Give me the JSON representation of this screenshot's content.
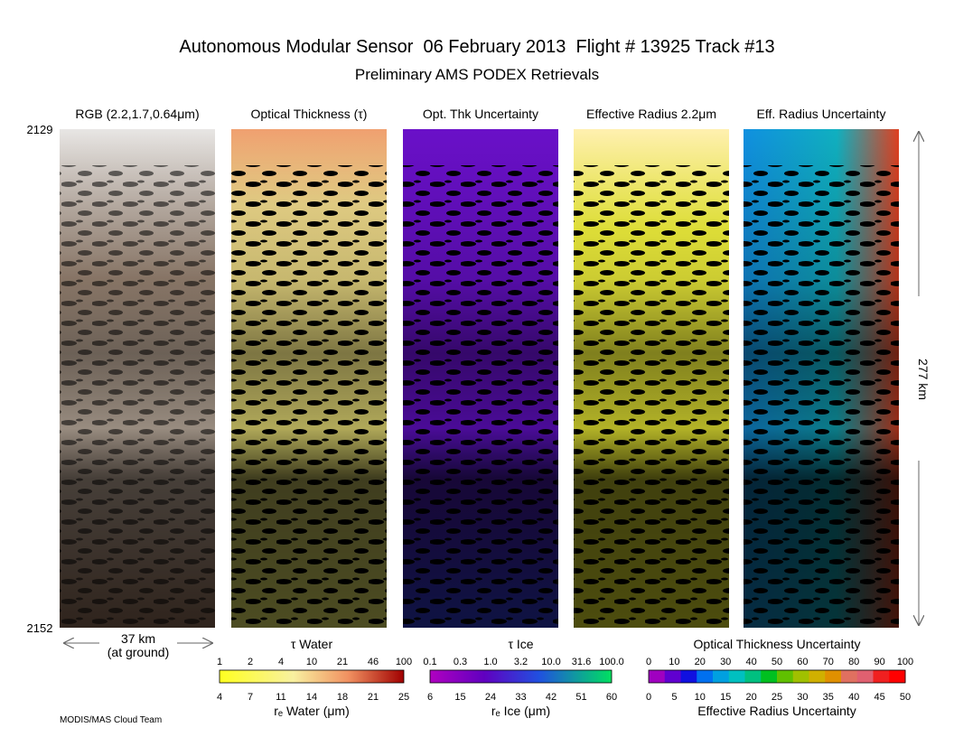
{
  "header": {
    "title": "Autonomous Modular Sensor  06 February 2013  Flight # 13925 Track #13",
    "subtitle": "Preliminary AMS PODEX Retrievals"
  },
  "panels": [
    {
      "title": "RGB (2.2,1.7,0.64μm)"
    },
    {
      "title": "Optical Thickness (τ)"
    },
    {
      "title": "Opt. Thk Uncertainty"
    },
    {
      "title": "Effective Radius 2.2μm"
    },
    {
      "title": "Eff. Radius Uncertainty"
    }
  ],
  "time_labels": {
    "start": "2129",
    "end": "2152"
  },
  "scale": {
    "width": "37 km",
    "width_note": "(at ground)",
    "length": "277 km"
  },
  "colorbars": [
    {
      "title": "τ Water",
      "top_ticks": [
        "1",
        "2",
        "4",
        "10",
        "21",
        "46",
        "100"
      ],
      "bottom_ticks": [
        "4",
        "7",
        "11",
        "14",
        "18",
        "21",
        "25"
      ],
      "bottom_title": "rₑ Water (μm)"
    },
    {
      "title": "τ Ice",
      "top_ticks": [
        "0.1",
        "0.3",
        "1.0",
        "3.2",
        "10.0",
        "31.6",
        "100.0"
      ],
      "bottom_ticks": [
        "6",
        "15",
        "24",
        "33",
        "42",
        "51",
        "60"
      ],
      "bottom_title": "rₑ Ice (μm)"
    },
    {
      "title": "Optical Thickness Uncertainty",
      "top_ticks": [
        "0",
        "10",
        "20",
        "30",
        "40",
        "50",
        "60",
        "70",
        "80",
        "90",
        "100"
      ],
      "bottom_ticks": [
        "0",
        "5",
        "10",
        "15",
        "20",
        "25",
        "30",
        "35",
        "40",
        "45",
        "50"
      ],
      "bottom_title": "Effective Radius Uncertainty"
    }
  ],
  "footer": "MODIS/MAS Cloud Team"
}
